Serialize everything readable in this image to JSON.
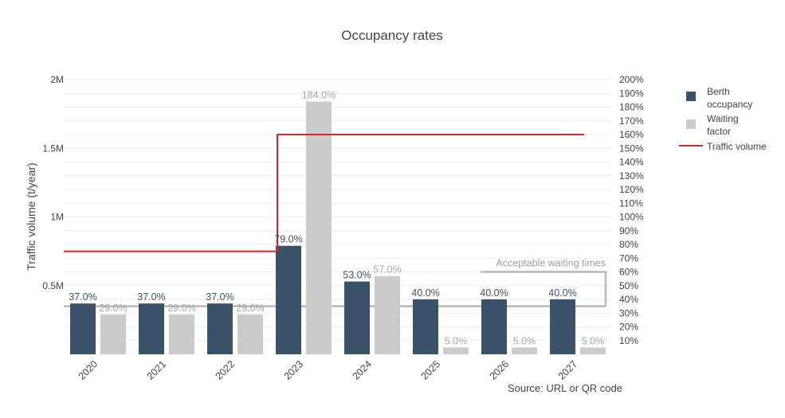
{
  "chart_data": {
    "type": "bar",
    "title": "Occupancy rates",
    "categories": [
      "2020",
      "2021",
      "2022",
      "2023",
      "2024",
      "2025",
      "2026",
      "2027"
    ],
    "series": [
      {
        "name": "Berth occupancy",
        "axis": "right",
        "values": [
          37,
          37,
          37,
          79,
          53,
          40,
          40,
          40
        ],
        "labels": [
          "37.0%",
          "37.0%",
          "37.0%",
          "79.0%",
          "53.0%",
          "40.0%",
          "40.0%",
          "40.0%"
        ],
        "color": "#3a536b"
      },
      {
        "name": "Waiting factor",
        "axis": "right",
        "values": [
          29,
          29,
          29,
          184,
          57,
          5,
          5,
          5
        ],
        "labels": [
          "29.0%",
          "29.0%",
          "29.0%",
          "184.0%",
          "57.0%",
          "5.0%",
          "5.0%",
          "5.0%"
        ],
        "color": "#cbcbcb"
      },
      {
        "name": "Traffic volume",
        "axis": "left",
        "type": "step-line",
        "values": [
          750000,
          750000,
          750000,
          1600000,
          1600000,
          1600000,
          1600000,
          1600000
        ],
        "color": "#d62728"
      }
    ],
    "legend_labels": [
      [
        "Berth",
        "occupancy"
      ],
      [
        "Waiting",
        "factor"
      ],
      [
        "Traffic volume"
      ]
    ],
    "ylabel": "Traffic volume (t/year)",
    "y_left": {
      "range": [
        0,
        2000000
      ],
      "ticks": [
        500000,
        1000000,
        1500000,
        2000000
      ],
      "tick_labels": [
        "0.5M",
        "1M",
        "1.5M",
        "2M"
      ]
    },
    "y_right": {
      "range": [
        0,
        200
      ],
      "ticks": [
        10,
        20,
        30,
        40,
        50,
        60,
        70,
        80,
        90,
        100,
        110,
        120,
        130,
        140,
        150,
        160,
        170,
        180,
        190,
        200
      ],
      "tick_labels": [
        "10%",
        "20%",
        "30%",
        "40%",
        "50%",
        "60%",
        "70%",
        "80%",
        "90%",
        "100%",
        "110%",
        "120%",
        "130%",
        "140%",
        "150%",
        "160%",
        "170%",
        "180%",
        "190%",
        "200%"
      ]
    },
    "annotation": {
      "text": "Acceptable waiting times",
      "band_low": 35,
      "band_high": 60,
      "color": "#b8b8b8"
    },
    "source": "Source: URL or QR code",
    "grid": true,
    "legend_position": "right"
  }
}
